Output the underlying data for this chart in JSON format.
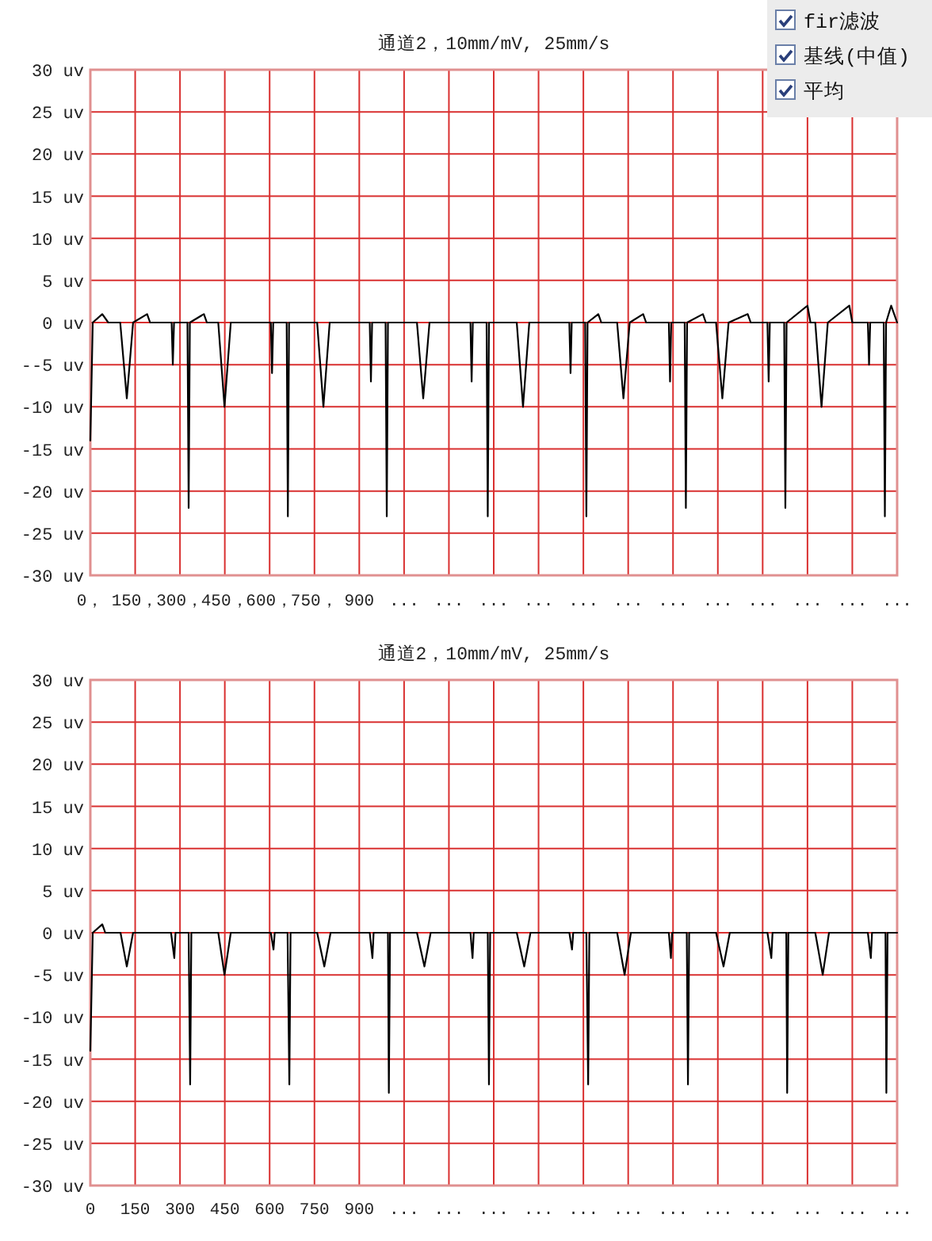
{
  "chart_data": [
    {
      "type": "line",
      "title": "通道2，10mm/mV, 25mm/s",
      "grid": true,
      "xlim": [
        0,
        2700
      ],
      "ylim": [
        -30,
        30
      ],
      "xticks": [
        {
          "value": 0,
          "label": "0，"
        },
        {
          "value": 150,
          "label": "150，"
        },
        {
          "value": 300,
          "label": "300，"
        },
        {
          "value": 450,
          "label": "450，"
        },
        {
          "value": 600,
          "label": "600，"
        },
        {
          "value": 750,
          "label": "750，"
        },
        {
          "value": 900,
          "label": "900"
        },
        {
          "value": 1050,
          "label": "..."
        },
        {
          "value": 1200,
          "label": "..."
        },
        {
          "value": 1350,
          "label": "..."
        },
        {
          "value": 1500,
          "label": "..."
        },
        {
          "value": 1650,
          "label": "..."
        },
        {
          "value": 1800,
          "label": "..."
        },
        {
          "value": 1950,
          "label": "..."
        },
        {
          "value": 2100,
          "label": "..."
        },
        {
          "value": 2250,
          "label": "..."
        },
        {
          "value": 2400,
          "label": "..."
        },
        {
          "value": 2550,
          "label": "..."
        },
        {
          "value": 2700,
          "label": "..."
        }
      ],
      "yticks": [
        {
          "value": 30,
          "label": "30 uv"
        },
        {
          "value": 25,
          "label": "25 uv"
        },
        {
          "value": 20,
          "label": "20 uv"
        },
        {
          "value": 15,
          "label": "15 uv"
        },
        {
          "value": 10,
          "label": "10 uv"
        },
        {
          "value": 5,
          "label": "5 uv"
        },
        {
          "value": 0,
          "label": "0 uv"
        },
        {
          "value": -5,
          "label": "--5 uv"
        },
        {
          "value": -10,
          "label": "-10 uv"
        },
        {
          "value": -15,
          "label": "-15 uv"
        },
        {
          "value": -20,
          "label": "-20 uv"
        },
        {
          "value": -25,
          "label": "-25 uv"
        },
        {
          "value": -30,
          "label": "-30 uv"
        }
      ],
      "annotations": [
        "fir滤波",
        "基线(中值)",
        "平均"
      ],
      "series": [
        {
          "color": "#000000",
          "x": [
            0,
            8,
            40,
            60,
            100,
            122,
            143,
            190,
            200,
            272,
            276,
            280,
            325,
            329,
            333,
            380,
            390,
            428,
            449,
            470,
            604,
            608,
            612,
            657,
            661,
            665,
            759,
            780,
            801,
            935,
            939,
            943,
            988,
            992,
            996,
            1093,
            1114,
            1135,
            1272,
            1276,
            1280,
            1326,
            1330,
            1334,
            1427,
            1448,
            1469,
            1603,
            1607,
            1611,
            1656,
            1660,
            1664,
            1700,
            1710,
            1763,
            1784,
            1805,
            1850,
            1860,
            1936,
            1940,
            1944,
            1989,
            1993,
            1997,
            2050,
            2060,
            2094,
            2115,
            2136,
            2200,
            2210,
            2266,
            2270,
            2274,
            2322,
            2326,
            2330,
            2400,
            2410,
            2426,
            2447,
            2468,
            2540,
            2550,
            2602,
            2606,
            2610,
            2655,
            2659,
            2663,
            2680,
            2700
          ],
          "values": [
            -14,
            0,
            1,
            0,
            0,
            -9,
            0,
            1,
            0,
            0,
            -5,
            0,
            0,
            -22,
            0,
            1,
            0,
            0,
            -10,
            0,
            0,
            -6,
            0,
            0,
            -23,
            0,
            0,
            -10,
            0,
            0,
            -7,
            0,
            0,
            -23,
            0,
            0,
            -9,
            0,
            0,
            -7,
            0,
            0,
            -23,
            0,
            0,
            -10,
            0,
            0,
            -6,
            0,
            0,
            -23,
            0,
            1,
            0,
            0,
            -9,
            0,
            1,
            0,
            0,
            -7,
            0,
            0,
            -22,
            0,
            1,
            0,
            0,
            -9,
            0,
            1,
            0,
            0,
            -7,
            0,
            0,
            -22,
            0,
            2,
            0,
            0,
            -10,
            0,
            2,
            0,
            0,
            -5,
            0,
            0,
            -23,
            0,
            2,
            0
          ]
        }
      ]
    },
    {
      "type": "line",
      "title": "通道2，10mm/mV, 25mm/s",
      "grid": true,
      "xlim": [
        0,
        2700
      ],
      "ylim": [
        -30,
        30
      ],
      "xticks": [
        0,
        150,
        300,
        450,
        600,
        750,
        900,
        {
          "value": 1050,
          "label": "..."
        },
        {
          "value": 1200,
          "label": "..."
        },
        {
          "value": 1350,
          "label": "..."
        },
        {
          "value": 1500,
          "label": "..."
        },
        {
          "value": 1650,
          "label": "..."
        },
        {
          "value": 1800,
          "label": "..."
        },
        {
          "value": 1950,
          "label": "..."
        },
        {
          "value": 2100,
          "label": "..."
        },
        {
          "value": 2250,
          "label": "..."
        },
        {
          "value": 2400,
          "label": "..."
        },
        {
          "value": 2550,
          "label": "..."
        },
        {
          "value": 2700,
          "label": "..."
        }
      ],
      "yticks": [
        {
          "value": 30,
          "label": "30 uv"
        },
        {
          "value": 25,
          "label": "25 uv"
        },
        {
          "value": 20,
          "label": "20 uv"
        },
        {
          "value": 15,
          "label": "15 uv"
        },
        {
          "value": 10,
          "label": "10 uv"
        },
        {
          "value": 5,
          "label": "5 uv"
        },
        {
          "value": 0,
          "label": "0 uv"
        },
        {
          "value": -5,
          "label": "-5 uv"
        },
        {
          "value": -10,
          "label": "-10 uv"
        },
        {
          "value": -15,
          "label": "-15 uv"
        },
        {
          "value": -20,
          "label": "-20 uv"
        },
        {
          "value": -25,
          "label": "-25 uv"
        },
        {
          "value": -30,
          "label": "-30 uv"
        }
      ],
      "series": [
        {
          "color": "#000000",
          "x": [
            0,
            8,
            40,
            50,
            101,
            122,
            143,
            270,
            281,
            285,
            329,
            334,
            338,
            428,
            449,
            470,
            604,
            613,
            617,
            660,
            666,
            670,
            759,
            783,
            804,
            935,
            944,
            948,
            996,
            999,
            1003,
            1093,
            1118,
            1139,
            1272,
            1279,
            1283,
            1330,
            1334,
            1338,
            1427,
            1452,
            1473,
            1603,
            1612,
            1616,
            1660,
            1666,
            1670,
            1763,
            1788,
            1809,
            1936,
            1943,
            1947,
            1996,
            2000,
            2004,
            2094,
            2119,
            2140,
            2266,
            2279,
            2283,
            2329,
            2332,
            2336,
            2426,
            2451,
            2472,
            2602,
            2612,
            2616,
            2661,
            2664,
            2668,
            2700
          ],
          "values": [
            -14,
            0,
            1,
            0,
            0,
            -4,
            0,
            0,
            -3,
            0,
            0,
            -18,
            0,
            0,
            -5,
            0,
            0,
            -2,
            0,
            0,
            -18,
            0,
            0,
            -4,
            0,
            0,
            -3,
            0,
            0,
            -19,
            0,
            0,
            -4,
            0,
            0,
            -3,
            0,
            0,
            -18,
            0,
            0,
            -4,
            0,
            0,
            -2,
            0,
            0,
            -18,
            0,
            0,
            -5,
            0,
            0,
            -3,
            0,
            0,
            -18,
            0,
            0,
            -4,
            0,
            0,
            -3,
            0,
            0,
            -19,
            0,
            0,
            -5,
            0,
            0,
            -3,
            0,
            0,
            -19,
            0,
            0
          ]
        }
      ]
    }
  ]
}
